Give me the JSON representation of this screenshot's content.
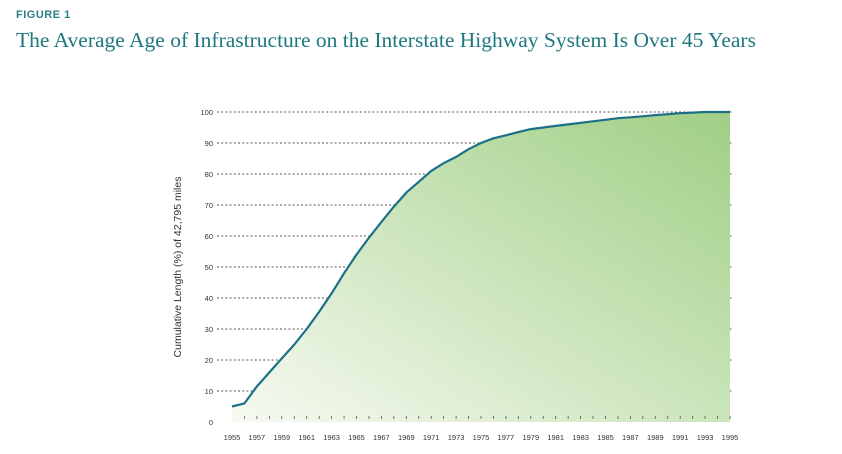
{
  "figure": {
    "label": "FIGURE 1",
    "title": "The Average Age of Infrastructure on the Interstate Highway System Is Over 45 Years"
  },
  "colors": {
    "accent": "#1f7780",
    "line": "#1b7088",
    "fill_light": "#f7faf2",
    "fill_dark": "#9fcf84",
    "grid": "#555555"
  },
  "chart_data": {
    "type": "area",
    "title": "",
    "xlabel": "",
    "ylabel": "Cumulative Length (%) of 42,795 miles",
    "xlim": [
      1955,
      1995
    ],
    "ylim": [
      0,
      100
    ],
    "grid": true,
    "x_ticks": [
      1955,
      1957,
      1959,
      1961,
      1963,
      1965,
      1967,
      1969,
      1971,
      1973,
      1975,
      1977,
      1979,
      1981,
      1983,
      1985,
      1987,
      1989,
      1991,
      1993,
      1995
    ],
    "y_ticks": [
      0,
      10,
      20,
      30,
      40,
      50,
      60,
      70,
      80,
      90,
      100
    ],
    "series": [
      {
        "x": [
          1955,
          1956,
          1957,
          1958,
          1959,
          1960,
          1961,
          1962,
          1963,
          1964,
          1965,
          1966,
          1967,
          1968,
          1969,
          1970,
          1971,
          1972,
          1973,
          1974,
          1975,
          1976,
          1977,
          1978,
          1979,
          1980,
          1981,
          1982,
          1983,
          1984,
          1985,
          1986,
          1987,
          1988,
          1989,
          1990,
          1991,
          1992,
          1993,
          1994,
          1995
        ],
        "values": [
          5,
          6,
          11.5,
          16,
          20.5,
          25,
          30,
          35.5,
          41.5,
          48,
          54,
          59.5,
          64.5,
          69.5,
          74,
          77.5,
          81,
          83.5,
          85.5,
          88,
          90,
          91.5,
          92.5,
          93.5,
          94.5,
          95,
          95.5,
          96,
          96.5,
          97,
          97.5,
          98,
          98.3,
          98.6,
          99,
          99.3,
          99.6,
          99.8,
          100,
          100,
          100
        ]
      }
    ]
  }
}
